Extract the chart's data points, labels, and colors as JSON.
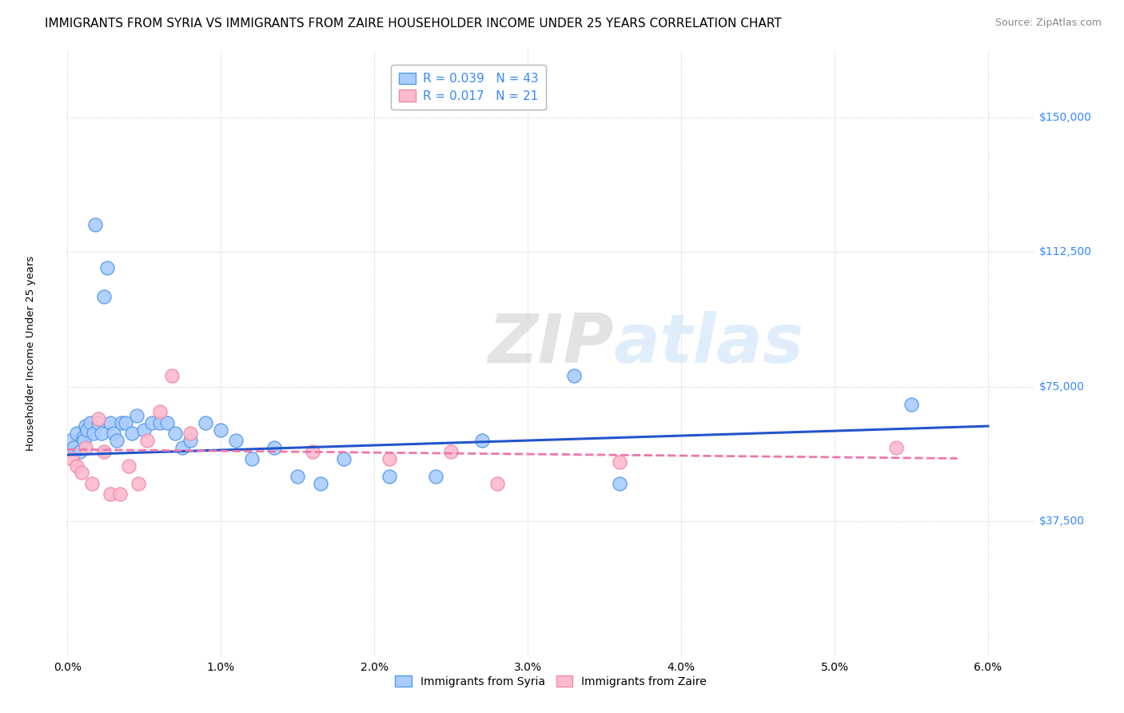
{
  "title": "IMMIGRANTS FROM SYRIA VS IMMIGRANTS FROM ZAIRE HOUSEHOLDER INCOME UNDER 25 YEARS CORRELATION CHART",
  "source": "Source: ZipAtlas.com",
  "ylabel": "Householder Income Under 25 years",
  "xlabel_ticks": [
    "0.0%",
    "1.0%",
    "2.0%",
    "3.0%",
    "4.0%",
    "5.0%",
    "6.0%"
  ],
  "xlabel_vals": [
    0.0,
    1.0,
    2.0,
    3.0,
    4.0,
    5.0,
    6.0
  ],
  "ytick_labels": [
    "$37,500",
    "$75,000",
    "$112,500",
    "$150,000"
  ],
  "ytick_vals": [
    37500,
    75000,
    112500,
    150000
  ],
  "ylim": [
    0,
    168750
  ],
  "xlim": [
    0.0,
    6.3
  ],
  "syria_R": "0.039",
  "syria_N": "43",
  "zaire_R": "0.017",
  "zaire_N": "21",
  "syria_color": "#aaccff",
  "zaire_color": "#ffbbcc",
  "syria_edge_color": "#5599ee",
  "zaire_edge_color": "#ee88aa",
  "syria_line_color": "#2255cc",
  "zaire_line_color": "#ee77aa",
  "label_color": "#3388ff",
  "watermark_zip": "ZIP",
  "watermark_atlas": "atlas",
  "syria_scatter_x": [
    0.02,
    0.04,
    0.06,
    0.08,
    0.1,
    0.11,
    0.12,
    0.13,
    0.15,
    0.17,
    0.18,
    0.2,
    0.22,
    0.24,
    0.26,
    0.28,
    0.3,
    0.32,
    0.35,
    0.38,
    0.42,
    0.45,
    0.5,
    0.55,
    0.6,
    0.65,
    0.7,
    0.75,
    0.8,
    0.9,
    1.0,
    1.1,
    1.2,
    1.35,
    1.5,
    1.65,
    1.8,
    2.1,
    2.4,
    2.7,
    3.3,
    3.6,
    5.5
  ],
  "syria_scatter_y": [
    60000,
    58000,
    62000,
    57000,
    61000,
    60000,
    64000,
    63000,
    65000,
    62000,
    120000,
    65000,
    62000,
    100000,
    108000,
    65000,
    62000,
    60000,
    65000,
    65000,
    62000,
    67000,
    63000,
    65000,
    65000,
    65000,
    62000,
    58000,
    60000,
    65000,
    63000,
    60000,
    55000,
    58000,
    50000,
    48000,
    55000,
    50000,
    50000,
    60000,
    78000,
    48000,
    70000
  ],
  "zaire_scatter_x": [
    0.03,
    0.06,
    0.09,
    0.12,
    0.16,
    0.2,
    0.24,
    0.28,
    0.34,
    0.4,
    0.46,
    0.52,
    0.6,
    0.68,
    0.8,
    1.6,
    2.1,
    2.5,
    2.8,
    3.6,
    5.4
  ],
  "zaire_scatter_y": [
    55000,
    53000,
    51000,
    58000,
    48000,
    66000,
    57000,
    45000,
    45000,
    53000,
    48000,
    60000,
    68000,
    78000,
    62000,
    57000,
    55000,
    57000,
    48000,
    54000,
    58000
  ],
  "syria_trend_x": [
    0.0,
    6.0
  ],
  "syria_trend_y": [
    56000,
    64000
  ],
  "zaire_trend_x": [
    0.0,
    5.8
  ],
  "zaire_trend_y": [
    57500,
    55000
  ],
  "background_color": "#ffffff",
  "grid_color": "#cccccc",
  "title_fontsize": 11,
  "axis_label_fontsize": 9.5,
  "tick_fontsize": 10,
  "source_fontsize": 9
}
